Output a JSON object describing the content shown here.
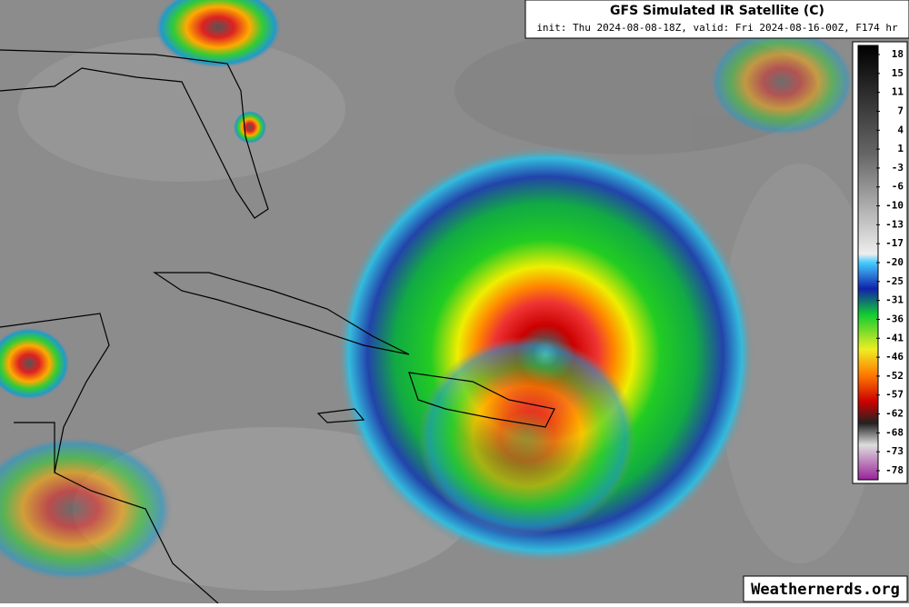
{
  "header": {
    "title": "GFS Simulated IR Satellite (C)",
    "subtitle": "init: Thu 2024-08-08-18Z, valid: Fri 2024-08-16-00Z, F174 hr"
  },
  "colorbar": {
    "ticks": [
      18,
      15,
      11,
      7,
      4,
      1,
      -3,
      -6,
      -10,
      -13,
      -17,
      -20,
      -25,
      -31,
      -36,
      -41,
      -46,
      -52,
      -57,
      -62,
      -68,
      -73,
      -78
    ]
  },
  "watermark": "Weathernerds.org"
}
